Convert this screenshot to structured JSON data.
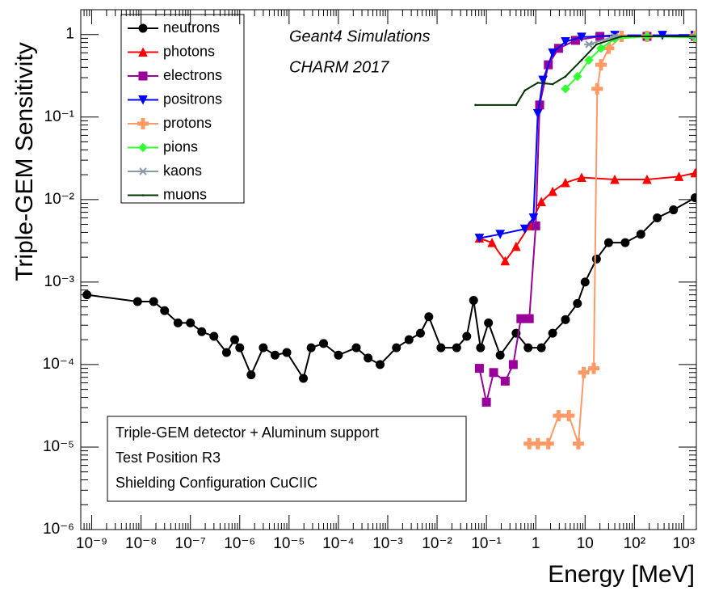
{
  "chart_data": {
    "type": "line",
    "x_label": "Energy [MeV]",
    "y_label": "Triple-GEM Sensitivity",
    "annotations": [
      "Geant4 Simulations",
      "CHARM 2017"
    ],
    "info_box": [
      "Triple-GEM detector + Aluminum support",
      "Test Position R3",
      "Shielding Configuration CuCIIC"
    ],
    "x_log": true,
    "y_log": true,
    "legend_position": "upper-left",
    "xlim": [
      6e-10,
      1800
    ],
    "ylim": [
      1e-06,
      2
    ],
    "xticks": [
      {
        "value": 1e-09,
        "label": "10⁻⁹"
      },
      {
        "value": 1e-08,
        "label": "10⁻⁸"
      },
      {
        "value": 1e-07,
        "label": "10⁻⁷"
      },
      {
        "value": 1e-06,
        "label": "10⁻⁶"
      },
      {
        "value": 1e-05,
        "label": "10⁻⁵"
      },
      {
        "value": 0.0001,
        "label": "10⁻⁴"
      },
      {
        "value": 0.001,
        "label": "10⁻³"
      },
      {
        "value": 0.01,
        "label": "10⁻²"
      },
      {
        "value": 0.1,
        "label": "10⁻¹"
      },
      1,
      {
        "value": 10,
        "label": "10"
      },
      {
        "value": 100,
        "label": "10²"
      },
      {
        "value": 1000,
        "label": "10³"
      }
    ],
    "yticks": [
      {
        "value": 1e-06,
        "label": "10⁻⁶"
      },
      {
        "value": 1e-05,
        "label": "10⁻⁵"
      },
      {
        "value": 0.0001,
        "label": "10⁻⁴"
      },
      {
        "value": 0.001,
        "label": "10⁻³"
      },
      {
        "value": 0.01,
        "label": "10⁻²"
      },
      {
        "value": 0.1,
        "label": "10⁻¹"
      },
      1
    ],
    "series": [
      {
        "name": "neutrons",
        "color": "#000000",
        "marker": "circle",
        "x": [
          8e-10,
          8.5e-09,
          1.8e-08,
          3e-08,
          5.6e-08,
          1e-07,
          1.7e-07,
          3e-07,
          5.4e-07,
          7.9e-07,
          1e-06,
          1.7e-06,
          3e-06,
          5.2e-06,
          9e-06,
          1.95e-05,
          2.8e-05,
          5e-05,
          0.0001,
          0.00023,
          0.0004,
          0.0007,
          0.0015,
          0.0027,
          0.0046,
          0.0068,
          0.012,
          0.025,
          0.04,
          0.055,
          0.076,
          0.11,
          0.19,
          0.4,
          0.7,
          1.3,
          2.2,
          4,
          7,
          10,
          17,
          30,
          65,
          135,
          290,
          620,
          1700
        ],
        "values": [
          0.0007,
          0.00058,
          0.00058,
          0.00045,
          0.00032,
          0.00032,
          0.00025,
          0.00022,
          0.00014,
          0.0002,
          0.00016,
          7.5e-05,
          0.00016,
          0.00013,
          0.00014,
          6.8e-05,
          0.00016,
          0.00018,
          0.00013,
          0.00016,
          0.00012,
          0.0001,
          0.00016,
          0.0002,
          0.00024,
          0.00038,
          0.00016,
          0.00016,
          0.00022,
          0.0006,
          0.00016,
          0.00032,
          0.00013,
          0.00024,
          0.00016,
          0.00016,
          0.00024,
          0.00035,
          0.00055,
          0.001,
          0.0019,
          0.003,
          0.003,
          0.0038,
          0.006,
          0.0075,
          0.0105
        ]
      },
      {
        "name": "photons",
        "color": "#ff0000",
        "marker": "triangle-up",
        "x": [
          0.072,
          0.13,
          0.24,
          0.4,
          0.74,
          1.3,
          2.2,
          4,
          8.5,
          40,
          180,
          800,
          1700
        ],
        "values": [
          0.0034,
          0.003,
          0.0018,
          0.0027,
          0.0048,
          0.0094,
          0.0125,
          0.016,
          0.0185,
          0.0175,
          0.0175,
          0.019,
          0.021
        ]
      },
      {
        "name": "electrons",
        "color": "#990099",
        "marker": "square",
        "x": [
          0.072,
          0.1,
          0.14,
          0.24,
          0.35,
          0.5,
          0.74,
          1,
          1.2,
          1.8,
          2.9,
          6.4,
          20,
          180,
          1700
        ],
        "values": [
          9e-05,
          3.5e-05,
          8e-05,
          6.3e-05,
          0.0001,
          0.00036,
          0.00036,
          0.0048,
          0.14,
          0.43,
          0.68,
          0.85,
          0.95,
          0.95,
          0.95
        ]
      },
      {
        "name": "positrons",
        "color": "#0000ff",
        "marker": "triangle-down",
        "x": [
          0.072,
          0.19,
          0.6,
          0.9,
          1.1,
          1.4,
          2.2,
          4,
          8.5,
          40,
          370,
          1700
        ],
        "values": [
          0.0034,
          0.0038,
          0.0044,
          0.006,
          0.11,
          0.28,
          0.6,
          0.82,
          0.93,
          0.98,
          0.98,
          0.98
        ]
      },
      {
        "name": "protons",
        "color": "#ff9966",
        "marker": "cross",
        "x": [
          0.74,
          1.1,
          1.8,
          2.9,
          4.7,
          7.3,
          9.4,
          15,
          17.6,
          21,
          30,
          55,
          180,
          1700
        ],
        "values": [
          1.1e-05,
          1.1e-05,
          1.1e-05,
          2.4e-05,
          2.4e-05,
          1.1e-05,
          8e-05,
          9e-05,
          0.22,
          0.43,
          0.68,
          0.95,
          0.95,
          0.95
        ]
      },
      {
        "name": "pions",
        "color": "#33ff33",
        "marker": "diamond",
        "x": [
          4,
          7,
          12,
          21,
          40,
          180,
          1700
        ],
        "values": [
          0.22,
          0.31,
          0.49,
          0.68,
          0.89,
          0.95,
          0.92
        ]
      },
      {
        "name": "kaons",
        "color": "#8899aa",
        "marker": "star",
        "x": [
          12,
          40,
          1700
        ],
        "values": [
          0.76,
          0.95,
          0.95
        ]
      },
      {
        "name": "muons",
        "color": "#003300",
        "marker": "none",
        "x": [
          0.06,
          0.4,
          0.6,
          1.1,
          2.2,
          4,
          8.5,
          17,
          55,
          1700
        ],
        "values": [
          0.14,
          0.14,
          0.21,
          0.26,
          0.25,
          0.31,
          0.49,
          0.76,
          0.95,
          0.95
        ]
      }
    ]
  }
}
